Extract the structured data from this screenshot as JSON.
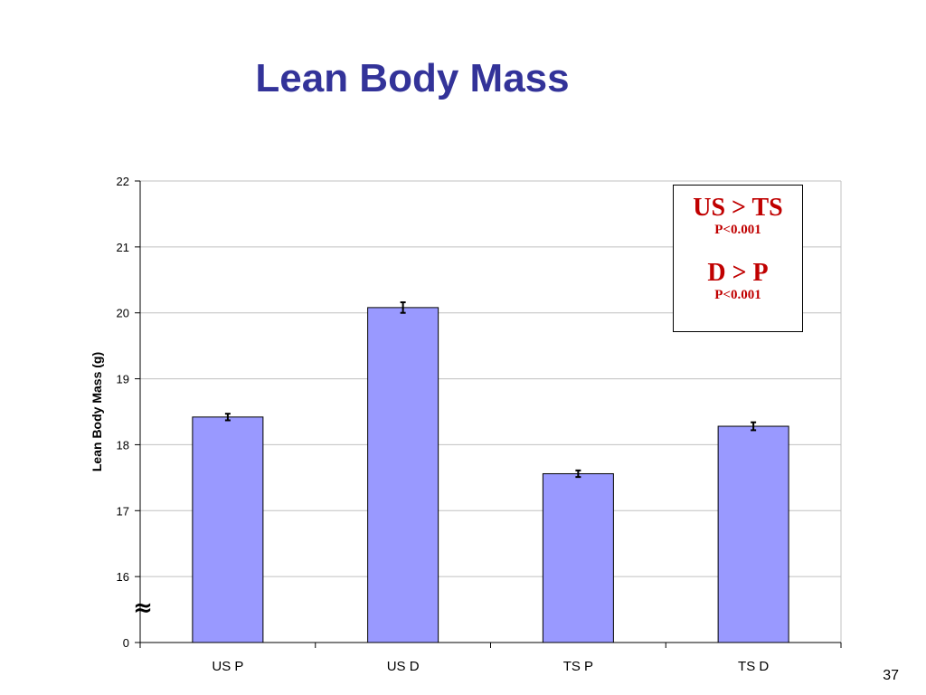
{
  "slide": {
    "title": "Lean Body Mass",
    "page_number": "37"
  },
  "annotation": {
    "line1": "US > TS",
    "line2": "P<0.001",
    "line3": "D > P",
    "line4": "P<0.001"
  },
  "chart_data": {
    "type": "bar",
    "title": "Lean Body Mass",
    "ylabel": "Lean Body Mass (g)",
    "xlabel": "",
    "categories": [
      "US P",
      "US D",
      "TS P",
      "TS D"
    ],
    "values": [
      18.42,
      20.08,
      17.56,
      18.28
    ],
    "errors": [
      0.05,
      0.08,
      0.05,
      0.06
    ],
    "yticks": [
      "0",
      "16",
      "17",
      "18",
      "19",
      "20",
      "21",
      "22"
    ],
    "axis_break": true,
    "axis_break_symbol": "≈",
    "ylim": [
      15,
      22
    ],
    "grid": true,
    "bar_color": "#9999ff"
  }
}
